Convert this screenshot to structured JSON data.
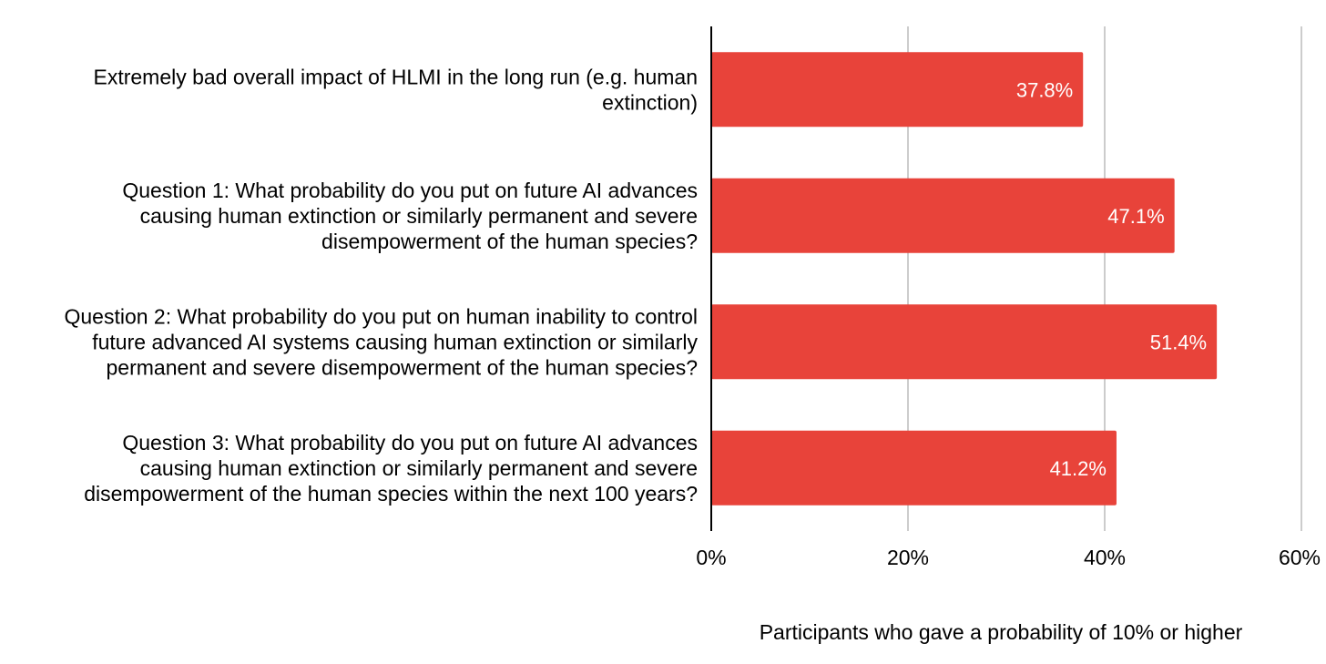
{
  "chart_data": {
    "type": "bar",
    "orientation": "horizontal",
    "title": "",
    "xlabel": "Participants who gave a probability of 10% or higher",
    "ylabel": "",
    "xlim": [
      0,
      60
    ],
    "xticks": [
      0,
      20,
      40,
      60
    ],
    "xtick_labels": [
      "0%",
      "20%",
      "40%",
      "60%"
    ],
    "grid": true,
    "categories": [
      {
        "label": "Extremely bad overall impact of HLMI in the long run (e.g. human extinction)",
        "lines": [
          "Extremely bad overall impact of HLMI in the long run (e.g. human",
          "extinction)"
        ]
      },
      {
        "label": "Question 1: What probability do you put on future AI advances causing human extinction or similarly permanent and severe disempowerment of the human species?",
        "lines": [
          "Question 1: What probability do you put on future AI advances",
          "causing human extinction or similarly permanent and severe",
          "disempowerment of the human species?"
        ]
      },
      {
        "label": "Question 2: What probability do you put on human inability to control future advanced AI systems causing human extinction or similarly permanent and severe disempowerment of the human species?",
        "lines": [
          "Question 2: What probability do you put on human inability to control",
          "future advanced AI systems causing human extinction or similarly",
          "permanent and severe disempowerment of the human species?"
        ]
      },
      {
        "label": "Question 3: What probability do you put on future AI advances causing human extinction or similarly permanent and severe disempowerment of the human species within the next 100 years?",
        "lines": [
          "Question 3: What probability do you put on future AI advances",
          "causing human extinction or similarly permanent and severe",
          "disempowerment of the human species within the next 100 years?"
        ]
      }
    ],
    "values": [
      37.8,
      47.1,
      51.4,
      41.2
    ],
    "data_labels": [
      "37.8%",
      "47.1%",
      "51.4%",
      "41.2%"
    ],
    "colors": {
      "bar": "#e8433a",
      "grid": "#cccccc",
      "axis": "#000000"
    }
  }
}
